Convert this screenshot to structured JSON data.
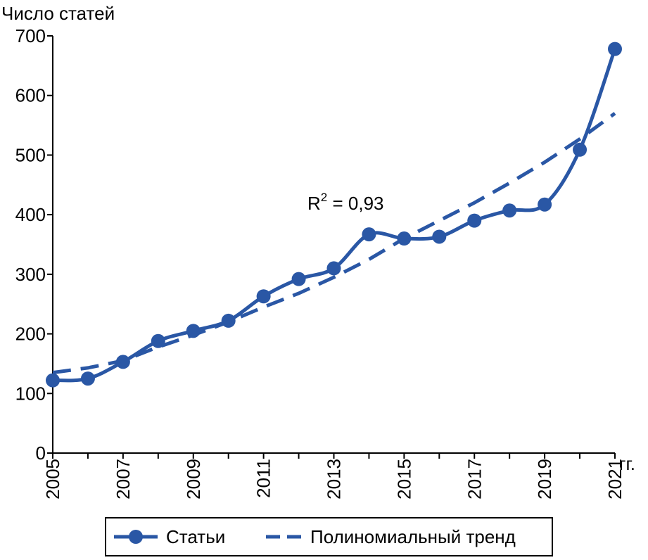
{
  "chart_data": {
    "type": "line",
    "ylabel": "Число статей",
    "xunit": "гг.",
    "x": [
      2005,
      2006,
      2007,
      2008,
      2009,
      2010,
      2011,
      2012,
      2013,
      2014,
      2015,
      2016,
      2017,
      2018,
      2019,
      2020,
      2021
    ],
    "x_tick_labels": [
      "2005",
      "2007",
      "2009",
      "2011",
      "2013",
      "2015",
      "2017",
      "2019",
      "2021"
    ],
    "y_tick_labels": [
      "0",
      "100",
      "200",
      "300",
      "400",
      "500",
      "600",
      "700"
    ],
    "ylim": [
      0,
      700
    ],
    "xlim": [
      2005,
      2021
    ],
    "series": [
      {
        "name": "Статьи",
        "style": "solid-markers",
        "color": "#2a57a5",
        "values": [
          122,
          125,
          153,
          188,
          205,
          222,
          263,
          292,
          310,
          367,
          360,
          363,
          390,
          407,
          417,
          509,
          678
        ]
      },
      {
        "name": "Полиномиальный тренд",
        "style": "dashed",
        "color": "#2a57a5",
        "values": [
          135,
          143,
          155,
          178,
          198,
          220,
          245,
          268,
          295,
          325,
          360,
          390,
          420,
          453,
          488,
          527,
          570
        ]
      }
    ],
    "annotation": {
      "base": "R",
      "superscript": "2",
      "rest": " = 0,93"
    },
    "legend_position": "bottom-center",
    "grid": false
  }
}
